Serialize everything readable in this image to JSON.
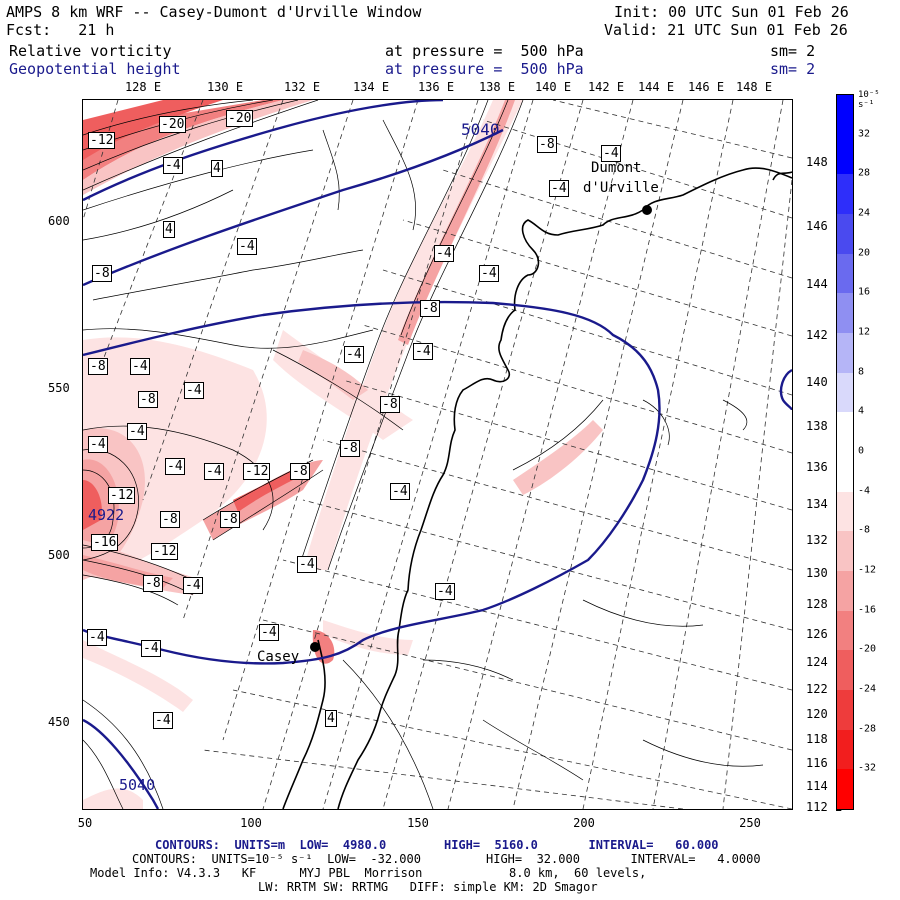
{
  "header": {
    "line1_left": "AMPS 8 km WRF -- Casey-Dumont d'Urville Window",
    "line1_right": "Init: 00 UTC Sun 01 Feb 26",
    "line2_left": "Fcst:   21 h",
    "line2_right": "Valid: 21 UTC Sun 01 Feb 26",
    "field1_name": "Relative vorticity",
    "field1_level": "at pressure =  500 hPa",
    "field1_sm": "sm= 2",
    "field2_name": "Geopotential height",
    "field2_level": "at pressure =  500 hPa",
    "field2_sm": "sm= 2"
  },
  "axes": {
    "top_lon_labels": [
      "128 E",
      "130 E",
      "132 E",
      "134 E",
      "136 E",
      "138 E",
      "140 E",
      "142 E",
      "144 E",
      "146 E",
      "148 E"
    ],
    "right_lat_labels": [
      "148 E",
      "146 E",
      "144 E",
      "142 E",
      "140 E",
      "138 E",
      "136 E",
      "134 E",
      "132 E",
      "130 E",
      "128 E",
      "126 E",
      "124 E",
      "122 E",
      "120 E",
      "118 E",
      "116 E",
      "114 E",
      "112 E"
    ],
    "x_ticks": [
      "50",
      "100",
      "150",
      "200",
      "250"
    ],
    "y_ticks": [
      "600",
      "550",
      "500",
      "450"
    ]
  },
  "colorbar": {
    "unit_label": "10⁻⁵ s⁻¹",
    "labels": [
      "32",
      "28",
      "24",
      "20",
      "16",
      "12",
      "8",
      "4",
      "0",
      "-4",
      "-8",
      "-12",
      "-16",
      "-20",
      "-24",
      "-28",
      "-32"
    ],
    "colors": [
      "#0000ff",
      "#2e2efa",
      "#4a4aef",
      "#6a6aef",
      "#8f8ff2",
      "#b5b5f7",
      "#d9d9fb",
      "#ffffff",
      "#ffffff",
      "#fde3e3",
      "#f9c4c4",
      "#f5a3a3",
      "#f28080",
      "#ef5e5e",
      "#ee3c3c",
      "#f21e1e",
      "#ff0000"
    ]
  },
  "map": {
    "stations": [
      {
        "name": "Dumont",
        "label2": "d'Urville"
      },
      {
        "name": "Casey"
      }
    ],
    "height_labels": [
      "5040",
      "4922",
      "5040"
    ],
    "vort_labels": [
      "-12",
      "-20",
      "-20",
      "-4",
      "4",
      "-8",
      "-4",
      "4",
      "-4",
      "-4",
      "-4",
      "-4",
      "-8",
      "-4",
      "-8",
      "-4",
      "-8",
      "-4",
      "-4",
      "-8",
      "-4",
      "-8",
      "-4",
      "-4",
      "-12",
      "-8",
      "-8",
      "-4",
      "-4",
      "-12",
      "-8",
      "-8",
      "-16",
      "-12",
      "-4",
      "-8",
      "-4",
      "-4",
      "-4",
      "-4",
      "-4",
      "4",
      "-4"
    ]
  },
  "footer": {
    "line1": "CONTOURS:  UNITS=m  LOW=  4980.0        HIGH=  5160.0       INTERVAL=   60.000",
    "line2": "CONTOURS:  UNITS=10⁻⁵ s⁻¹  LOW=  -32.000         HIGH=  32.000       INTERVAL=   4.0000",
    "line3": "Model Info: V4.3.3   KF      MYJ PBL  Morrison            8.0 km,  60 levels,",
    "line4": "LW: RRTM SW: RRTMG   DIFF: simple KM: 2D Smagor"
  }
}
